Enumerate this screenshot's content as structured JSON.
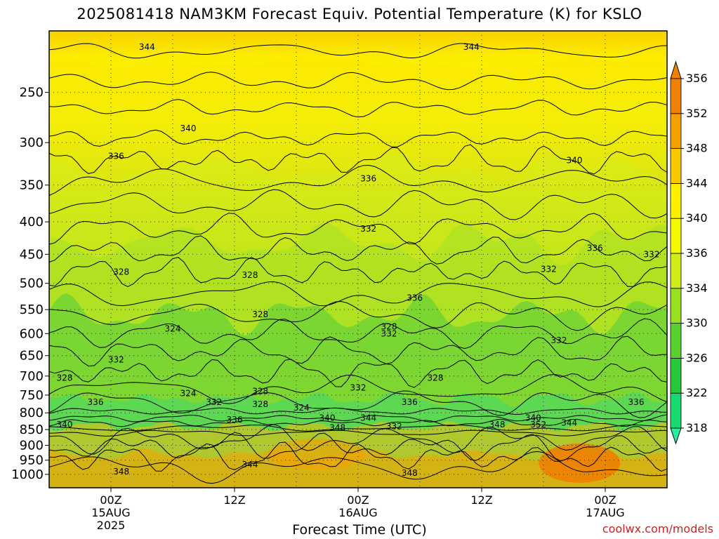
{
  "title": "2025081418 NAM3KM Forecast Equiv. Potential Temperature (K) for KSLO",
  "xlabel": "Forecast Time (UTC)",
  "credit": "coolwx.com/models",
  "chart_data": {
    "type": "heatmap",
    "title": "2025081418 NAM3KM Forecast Equiv. Potential Temperature (K) for KSLO",
    "xlabel": "Forecast Time (UTC)",
    "ylabel": "",
    "variable": "Equiv. Potential Temperature (K)",
    "y_axis": {
      "unit": "hPa",
      "scale": "log",
      "inverted": true,
      "range": [
        1050,
        200
      ],
      "ticks": [
        250,
        300,
        350,
        400,
        450,
        500,
        550,
        600,
        650,
        700,
        750,
        800,
        850,
        900,
        950,
        1000
      ]
    },
    "x_axis": {
      "range_hours": [
        -6,
        54
      ],
      "ticks": [
        {
          "hour": 0,
          "lines": [
            "00Z",
            "15AUG",
            "2025"
          ]
        },
        {
          "hour": 12,
          "lines": [
            "12Z"
          ]
        },
        {
          "hour": 24,
          "lines": [
            "00Z",
            "16AUG"
          ]
        },
        {
          "hour": 36,
          "lines": [
            "12Z"
          ]
        },
        {
          "hour": 48,
          "lines": [
            "00Z",
            "17AUG"
          ]
        }
      ]
    },
    "colorbar": {
      "ticks": [
        318,
        322,
        326,
        330,
        334,
        336,
        340,
        344,
        348,
        352,
        356
      ],
      "colors": [
        "#20f0a0",
        "#18d870",
        "#28c838",
        "#58d030",
        "#98e020",
        "#d0ec18",
        "#f4f800",
        "#fcf000",
        "#f8c800",
        "#f4a000",
        "#f08000"
      ]
    },
    "underground_color": "#a0522d",
    "grid": true,
    "contour_labels": [
      {
        "value": 344,
        "hour": 3.5,
        "hpa": 212
      },
      {
        "value": 344,
        "hour": 35,
        "hpa": 212
      },
      {
        "value": 340,
        "hour": 7.5,
        "hpa": 285
      },
      {
        "value": 340,
        "hour": 45,
        "hpa": 320
      },
      {
        "value": 336,
        "hour": 0.5,
        "hpa": 315
      },
      {
        "value": 336,
        "hour": 25,
        "hpa": 342
      },
      {
        "value": 336,
        "hour": 47,
        "hpa": 440
      },
      {
        "value": 336,
        "hour": 29.5,
        "hpa": 527
      },
      {
        "value": 336,
        "hour": -1.5,
        "hpa": 770
      },
      {
        "value": 336,
        "hour": 12,
        "hpa": 820
      },
      {
        "value": 336,
        "hour": 29,
        "hpa": 770
      },
      {
        "value": 336,
        "hour": 51,
        "hpa": 770
      },
      {
        "value": 332,
        "hour": 25,
        "hpa": 410
      },
      {
        "value": 332,
        "hour": 42.5,
        "hpa": 475
      },
      {
        "value": 332,
        "hour": 52.5,
        "hpa": 450
      },
      {
        "value": 332,
        "hour": 43.5,
        "hpa": 615
      },
      {
        "value": 332,
        "hour": 27,
        "hpa": 600
      },
      {
        "value": 332,
        "hour": 0.5,
        "hpa": 660
      },
      {
        "value": 332,
        "hour": 10,
        "hpa": 770
      },
      {
        "value": 332,
        "hour": 24,
        "hpa": 730
      },
      {
        "value": 332,
        "hour": 27.5,
        "hpa": 840
      },
      {
        "value": 328,
        "hour": 1,
        "hpa": 480
      },
      {
        "value": 328,
        "hour": 13.5,
        "hpa": 485
      },
      {
        "value": 328,
        "hour": 14.5,
        "hpa": 560
      },
      {
        "value": 328,
        "hour": 27,
        "hpa": 585
      },
      {
        "value": 328,
        "hour": -4.5,
        "hpa": 705
      },
      {
        "value": 328,
        "hour": 14.5,
        "hpa": 740
      },
      {
        "value": 328,
        "hour": 14.5,
        "hpa": 775
      },
      {
        "value": 328,
        "hour": 31.5,
        "hpa": 705
      },
      {
        "value": 324,
        "hour": 6,
        "hpa": 590
      },
      {
        "value": 324,
        "hour": 7.5,
        "hpa": 745
      },
      {
        "value": 324,
        "hour": 18.5,
        "hpa": 785
      },
      {
        "value": 340,
        "hour": -4.5,
        "hpa": 835
      },
      {
        "value": 340,
        "hour": 21,
        "hpa": 815
      },
      {
        "value": 340,
        "hour": 41,
        "hpa": 815
      },
      {
        "value": 344,
        "hour": 25,
        "hpa": 815
      },
      {
        "value": 344,
        "hour": 44.5,
        "hpa": 830
      },
      {
        "value": 344,
        "hour": 13.5,
        "hpa": 965
      },
      {
        "value": 348,
        "hour": 22,
        "hpa": 845
      },
      {
        "value": 348,
        "hour": 37.5,
        "hpa": 835
      },
      {
        "value": 348,
        "hour": 1,
        "hpa": 990
      },
      {
        "value": 348,
        "hour": 29,
        "hpa": 995
      },
      {
        "value": 352,
        "hour": 41.5,
        "hpa": 835
      }
    ]
  }
}
